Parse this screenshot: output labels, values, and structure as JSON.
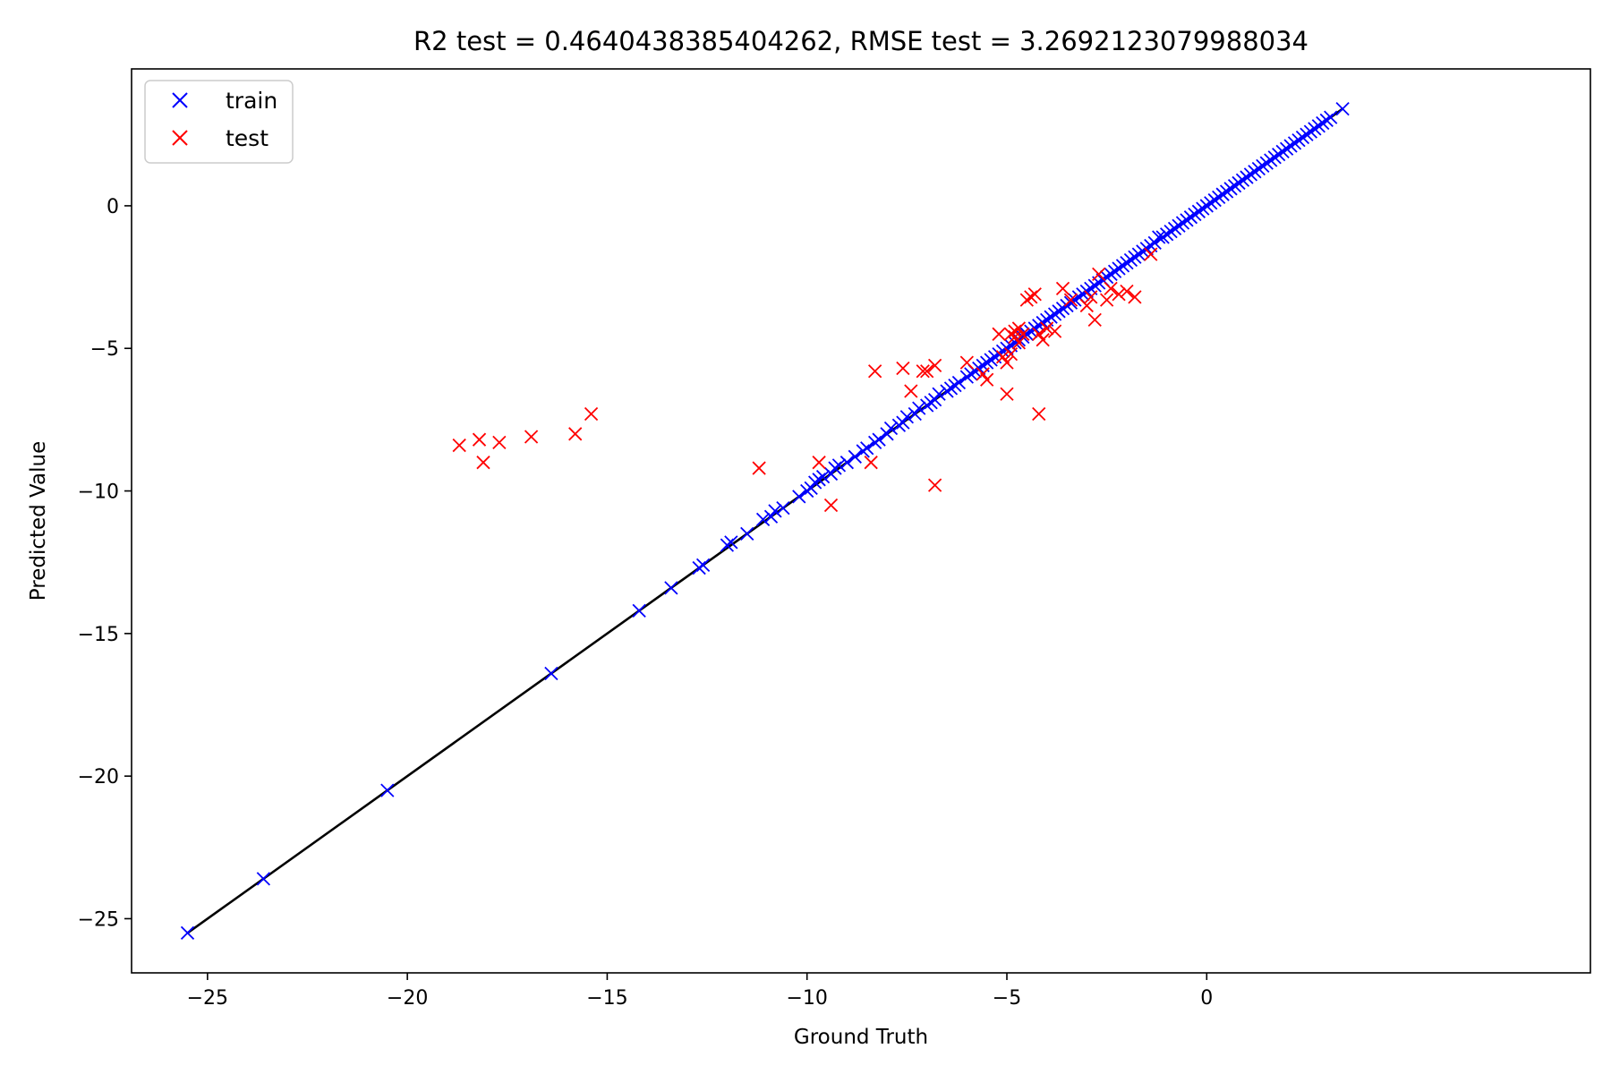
{
  "chart_data": {
    "type": "scatter",
    "title": "R2 test = 0.4640438385404262,  RMSE test = 3.2692123079988034",
    "xlabel": "Ground Truth",
    "ylabel": "Predicted Value",
    "xlim": [
      -26.9,
      9.6
    ],
    "ylim": [
      -26.9,
      4.8
    ],
    "x_ticks": [
      -25,
      -20,
      -15,
      -10,
      -5,
      0
    ],
    "y_ticks": [
      -25,
      -20,
      -15,
      -10,
      -5,
      0
    ],
    "grid": false,
    "legend_position": "top-left",
    "identity_line": {
      "from": -25.5,
      "to": 3.4,
      "color": "#000000"
    },
    "series": [
      {
        "name": "train",
        "color": "#0000ff",
        "marker": "x",
        "points": [
          [
            -25.5,
            -25.5
          ],
          [
            -23.6,
            -23.6
          ],
          [
            -20.5,
            -20.5
          ],
          [
            -16.4,
            -16.4
          ],
          [
            -14.2,
            -14.2
          ],
          [
            -13.4,
            -13.4
          ],
          [
            -12.7,
            -12.7
          ],
          [
            -12.6,
            -12.6
          ],
          [
            -12.0,
            -11.9
          ],
          [
            -11.9,
            -11.8
          ],
          [
            -11.5,
            -11.5
          ],
          [
            -11.1,
            -11.0
          ],
          [
            -10.9,
            -10.9
          ],
          [
            -10.8,
            -10.7
          ],
          [
            -10.6,
            -10.6
          ],
          [
            -10.2,
            -10.2
          ],
          [
            -10.0,
            -10.0
          ],
          [
            -9.9,
            -9.9
          ],
          [
            -9.8,
            -9.7
          ],
          [
            -9.7,
            -9.6
          ],
          [
            -9.6,
            -9.5
          ],
          [
            -9.4,
            -9.4
          ],
          [
            -9.3,
            -9.2
          ],
          [
            -9.2,
            -9.1
          ],
          [
            -9.0,
            -9.0
          ],
          [
            -8.8,
            -8.8
          ],
          [
            -8.6,
            -8.6
          ],
          [
            -8.5,
            -8.5
          ],
          [
            -8.3,
            -8.3
          ],
          [
            -8.2,
            -8.2
          ],
          [
            -8.0,
            -8.0
          ],
          [
            -7.9,
            -7.8
          ],
          [
            -7.7,
            -7.7
          ],
          [
            -7.6,
            -7.6
          ],
          [
            -7.5,
            -7.4
          ],
          [
            -7.3,
            -7.3
          ],
          [
            -7.2,
            -7.1
          ],
          [
            -7.0,
            -7.0
          ],
          [
            -6.9,
            -6.9
          ],
          [
            -6.8,
            -6.8
          ],
          [
            -6.7,
            -6.6
          ],
          [
            -6.5,
            -6.5
          ],
          [
            -6.4,
            -6.4
          ],
          [
            -6.3,
            -6.3
          ],
          [
            -6.2,
            -6.2
          ],
          [
            -6.0,
            -6.0
          ],
          [
            -5.9,
            -5.9
          ],
          [
            -5.8,
            -5.8
          ],
          [
            -5.7,
            -5.7
          ],
          [
            -5.6,
            -5.6
          ],
          [
            -5.5,
            -5.5
          ],
          [
            -5.4,
            -5.4
          ],
          [
            -5.3,
            -5.3
          ],
          [
            -5.2,
            -5.2
          ],
          [
            -5.1,
            -5.1
          ],
          [
            -5.0,
            -5.0
          ],
          [
            -4.9,
            -4.9
          ],
          [
            -4.8,
            -4.8
          ],
          [
            -4.7,
            -4.7
          ],
          [
            -4.6,
            -4.6
          ],
          [
            -4.5,
            -4.5
          ],
          [
            -4.4,
            -4.4
          ],
          [
            -4.3,
            -4.3
          ],
          [
            -4.2,
            -4.2
          ],
          [
            -4.1,
            -4.1
          ],
          [
            -4.0,
            -4.0
          ],
          [
            -3.9,
            -3.9
          ],
          [
            -3.8,
            -3.8
          ],
          [
            -3.7,
            -3.7
          ],
          [
            -3.6,
            -3.6
          ],
          [
            -3.5,
            -3.5
          ],
          [
            -3.4,
            -3.4
          ],
          [
            -3.3,
            -3.3
          ],
          [
            -3.2,
            -3.2
          ],
          [
            -3.1,
            -3.1
          ],
          [
            -3.0,
            -3.0
          ],
          [
            -2.9,
            -2.9
          ],
          [
            -2.8,
            -2.8
          ],
          [
            -2.7,
            -2.7
          ],
          [
            -2.6,
            -2.6
          ],
          [
            -2.5,
            -2.5
          ],
          [
            -2.4,
            -2.4
          ],
          [
            -2.3,
            -2.3
          ],
          [
            -2.2,
            -2.2
          ],
          [
            -2.1,
            -2.1
          ],
          [
            -2.0,
            -2.0
          ],
          [
            -1.9,
            -1.9
          ],
          [
            -1.8,
            -1.8
          ],
          [
            -1.7,
            -1.7
          ],
          [
            -1.6,
            -1.6
          ],
          [
            -1.5,
            -1.5
          ],
          [
            -1.4,
            -1.4
          ],
          [
            -1.3,
            -1.3
          ],
          [
            -1.2,
            -1.1
          ],
          [
            -1.1,
            -1.1
          ],
          [
            -1.0,
            -1.0
          ],
          [
            -0.9,
            -0.9
          ],
          [
            -0.8,
            -0.8
          ],
          [
            -0.7,
            -0.7
          ],
          [
            -0.6,
            -0.6
          ],
          [
            -0.5,
            -0.5
          ],
          [
            -0.4,
            -0.4
          ],
          [
            -0.3,
            -0.3
          ],
          [
            -0.2,
            -0.2
          ],
          [
            -0.1,
            -0.1
          ],
          [
            0.0,
            0.0
          ],
          [
            0.1,
            0.1
          ],
          [
            0.2,
            0.2
          ],
          [
            0.3,
            0.3
          ],
          [
            0.4,
            0.4
          ],
          [
            0.5,
            0.5
          ],
          [
            0.6,
            0.6
          ],
          [
            0.7,
            0.7
          ],
          [
            0.8,
            0.8
          ],
          [
            0.9,
            0.9
          ],
          [
            1.0,
            1.0
          ],
          [
            1.1,
            1.1
          ],
          [
            1.2,
            1.2
          ],
          [
            1.3,
            1.3
          ],
          [
            1.4,
            1.4
          ],
          [
            1.5,
            1.5
          ],
          [
            1.6,
            1.6
          ],
          [
            1.7,
            1.7
          ],
          [
            1.8,
            1.8
          ],
          [
            1.9,
            1.9
          ],
          [
            2.0,
            2.0
          ],
          [
            2.1,
            2.1
          ],
          [
            2.2,
            2.2
          ],
          [
            2.3,
            2.3
          ],
          [
            2.4,
            2.4
          ],
          [
            2.5,
            2.5
          ],
          [
            2.6,
            2.6
          ],
          [
            2.7,
            2.7
          ],
          [
            2.8,
            2.8
          ],
          [
            2.9,
            2.9
          ],
          [
            3.0,
            3.0
          ],
          [
            3.1,
            3.1
          ],
          [
            3.4,
            3.4
          ]
        ]
      },
      {
        "name": "test",
        "color": "#ff0000",
        "marker": "x",
        "points": [
          [
            -18.7,
            -8.4
          ],
          [
            -18.2,
            -8.2
          ],
          [
            -18.1,
            -9.0
          ],
          [
            -17.7,
            -8.3
          ],
          [
            -16.9,
            -8.1
          ],
          [
            -15.8,
            -8.0
          ],
          [
            -15.4,
            -7.3
          ],
          [
            -11.2,
            -9.2
          ],
          [
            -9.7,
            -9.0
          ],
          [
            -9.4,
            -10.5
          ],
          [
            -8.4,
            -9.0
          ],
          [
            -8.3,
            -5.8
          ],
          [
            -7.6,
            -5.7
          ],
          [
            -7.4,
            -6.5
          ],
          [
            -7.1,
            -5.8
          ],
          [
            -7.0,
            -5.8
          ],
          [
            -6.8,
            -5.6
          ],
          [
            -6.8,
            -9.8
          ],
          [
            -6.0,
            -5.5
          ],
          [
            -5.6,
            -5.9
          ],
          [
            -5.5,
            -6.1
          ],
          [
            -5.2,
            -4.5
          ],
          [
            -5.1,
            -5.3
          ],
          [
            -5.0,
            -5.5
          ],
          [
            -5.0,
            -6.6
          ],
          [
            -4.9,
            -4.5
          ],
          [
            -4.9,
            -5.2
          ],
          [
            -4.8,
            -4.4
          ],
          [
            -4.8,
            -4.6
          ],
          [
            -4.7,
            -4.8
          ],
          [
            -4.7,
            -4.3
          ],
          [
            -4.6,
            -4.5
          ],
          [
            -4.5,
            -3.3
          ],
          [
            -4.4,
            -3.2
          ],
          [
            -4.3,
            -3.1
          ],
          [
            -4.2,
            -4.5
          ],
          [
            -4.1,
            -4.7
          ],
          [
            -4.2,
            -7.3
          ],
          [
            -4.0,
            -4.3
          ],
          [
            -3.8,
            -4.4
          ],
          [
            -3.6,
            -2.9
          ],
          [
            -3.4,
            -3.3
          ],
          [
            -3.0,
            -3.5
          ],
          [
            -2.9,
            -3.2
          ],
          [
            -2.8,
            -4.0
          ],
          [
            -2.7,
            -2.4
          ],
          [
            -2.5,
            -3.3
          ],
          [
            -2.4,
            -2.9
          ],
          [
            -2.2,
            -3.1
          ],
          [
            -2.0,
            -3.0
          ],
          [
            -1.8,
            -3.2
          ],
          [
            -1.4,
            -1.7
          ]
        ]
      }
    ]
  }
}
